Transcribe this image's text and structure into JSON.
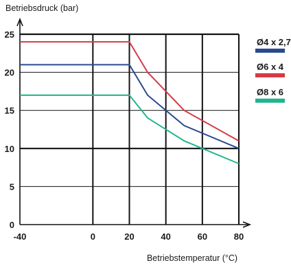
{
  "chart_data": {
    "type": "line",
    "ylabel": "Betriebsdruck (bar)",
    "xlabel": "Betriebstemperatur (°C)",
    "xlim": [
      -40,
      80
    ],
    "ylim": [
      0,
      25
    ],
    "xticks": [
      -40,
      0,
      20,
      40,
      60,
      80
    ],
    "yticks": [
      0,
      5,
      10,
      15,
      20,
      25
    ],
    "grid": true,
    "legend": "right",
    "series": [
      {
        "name": "Ø4 x 2,7",
        "color": "#2a4a8e",
        "x": [
          -40,
          20,
          30,
          50,
          80
        ],
        "y": [
          21,
          21,
          17,
          13,
          10
        ]
      },
      {
        "name": "Ø6 x 4",
        "color": "#d63a45",
        "x": [
          -40,
          20,
          30,
          50,
          80
        ],
        "y": [
          24,
          24,
          20,
          15,
          11
        ]
      },
      {
        "name": "Ø8 x 6",
        "color": "#22b58e",
        "x": [
          -40,
          20,
          30,
          50,
          80
        ],
        "y": [
          17,
          17,
          14,
          11,
          8
        ]
      }
    ]
  }
}
